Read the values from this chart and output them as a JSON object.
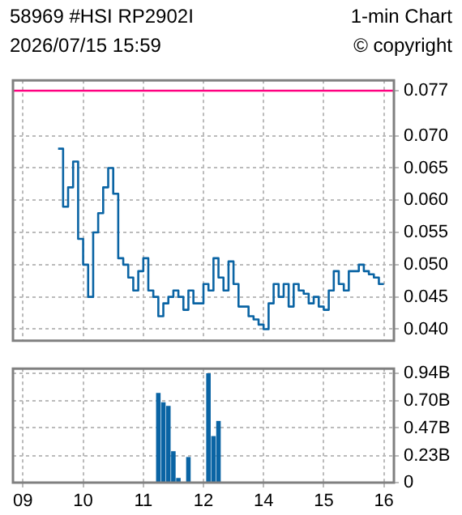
{
  "chart_data": [
    {
      "type": "step",
      "title": "58969 #HSI RP2902I",
      "subtitle": "2026/07/15 15:59",
      "annotations": [
        "1-min Chart",
        "© copyright"
      ],
      "categories": [
        null,
        null,
        "09",
        null,
        null,
        null,
        null,
        null,
        null,
        null,
        null,
        null,
        null,
        null,
        "10",
        null,
        null,
        null,
        null,
        null,
        null,
        null,
        null,
        null,
        null,
        null,
        "11",
        null,
        null,
        null,
        null,
        null,
        null,
        null,
        null,
        null,
        null,
        null,
        "12",
        null,
        null,
        null,
        null,
        null,
        null,
        null,
        null,
        null,
        null,
        null,
        "14",
        null,
        null,
        null,
        null,
        null,
        null,
        null,
        null,
        null,
        null,
        null,
        "15",
        null,
        null,
        null,
        null,
        null,
        null,
        null,
        null,
        null,
        null,
        null,
        "16",
        null,
        null
      ],
      "series": [
        {
          "color": "#0a64a4",
          "values": [
            null,
            null,
            null,
            null,
            null,
            null,
            null,
            null,
            null,
            0.068,
            0.059,
            0.062,
            0.066,
            0.054,
            0.05,
            0.045,
            0.055,
            0.058,
            0.062,
            0.065,
            0.061,
            0.051,
            0.05,
            0.048,
            0.046,
            0.049,
            0.051,
            0.046,
            0.045,
            0.042,
            0.044,
            0.045,
            0.046,
            0.045,
            0.043,
            0.046,
            0.044,
            0.044,
            0.047,
            0.046,
            0.051,
            0.048,
            0.046,
            0.0505,
            0.047,
            0.0435,
            0.0435,
            0.042,
            0.0415,
            0.0407,
            0.04,
            0.044,
            0.047,
            0.045,
            0.047,
            0.0435,
            0.047,
            0.046,
            0.0455,
            0.044,
            0.045,
            0.0435,
            0.043,
            0.046,
            0.049,
            0.047,
            0.046,
            0.049,
            0.049,
            0.05,
            0.049,
            0.0485,
            0.048,
            0.047,
            0.047,
            null,
            null
          ]
        }
      ],
      "ylim": [
        0.0382,
        0.0786
      ],
      "yticks": [
        {
          "value": 0.04,
          "label": "0.040"
        },
        0.045,
        {
          "value": 0.05,
          "label": "0.050"
        },
        0.055,
        {
          "value": 0.06,
          "label": "0.060"
        },
        0.065,
        {
          "value": 0.07,
          "label": "0.070"
        },
        0.077
      ],
      "grid": true,
      "tick_labels": "y",
      "ref_lines": [
        {
          "axis": "y",
          "value": 0.077,
          "color": "#ff0080"
        }
      ]
    },
    {
      "type": "bar",
      "categories": [
        null,
        null,
        "09",
        null,
        null,
        null,
        null,
        null,
        null,
        null,
        null,
        null,
        null,
        null,
        "10",
        null,
        null,
        null,
        null,
        null,
        null,
        null,
        null,
        null,
        null,
        null,
        "11",
        null,
        null,
        null,
        null,
        null,
        null,
        null,
        null,
        null,
        null,
        null,
        "12",
        null,
        null,
        null,
        null,
        null,
        null,
        null,
        null,
        null,
        null,
        null,
        "14",
        null,
        null,
        null,
        null,
        null,
        null,
        null,
        null,
        null,
        null,
        null,
        "15",
        null,
        null,
        null,
        null,
        null,
        null,
        null,
        null,
        null,
        null,
        null,
        "16",
        null,
        null
      ],
      "values": [
        null,
        null,
        null,
        null,
        null,
        null,
        null,
        null,
        null,
        null,
        null,
        null,
        null,
        null,
        null,
        null,
        null,
        null,
        null,
        null,
        null,
        null,
        null,
        null,
        null,
        null,
        null,
        null,
        null,
        0.77,
        0.69,
        0.66,
        0.27,
        0.04,
        null,
        0.22,
        null,
        null,
        null,
        0.94,
        0.4,
        0.53,
        null,
        null,
        null,
        null,
        null,
        null,
        null,
        null,
        null,
        null,
        null,
        null,
        null,
        null,
        null,
        null,
        null,
        null,
        null,
        null,
        null,
        null,
        null,
        null,
        null,
        null,
        null,
        null,
        null,
        null,
        null,
        null,
        null,
        null,
        null
      ],
      "color": "#0a64a4",
      "ylim": [
        0,
        0.98
      ],
      "yticks": [
        0,
        {
          "value": 0.23,
          "label": "0.23B"
        },
        {
          "value": 0.47,
          "label": "0.47B"
        },
        {
          "value": 0.7,
          "label": "0.70B"
        },
        {
          "value": 0.94,
          "label": "0.94B"
        }
      ],
      "grid": true
    }
  ]
}
